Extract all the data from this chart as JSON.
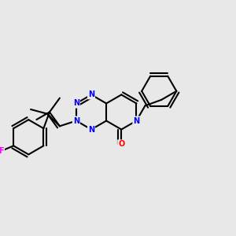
{
  "background_color": "#e8e8e8",
  "bond_color": "#000000",
  "N_color": "#0000ff",
  "O_color": "#ff0000",
  "F_color": "#ff00ff",
  "lw": 1.5,
  "atoms": {
    "N1_label": "N",
    "N2_label": "N",
    "N3_label": "N",
    "N4_label": "N",
    "O_label": "O",
    "F_label": "F"
  }
}
